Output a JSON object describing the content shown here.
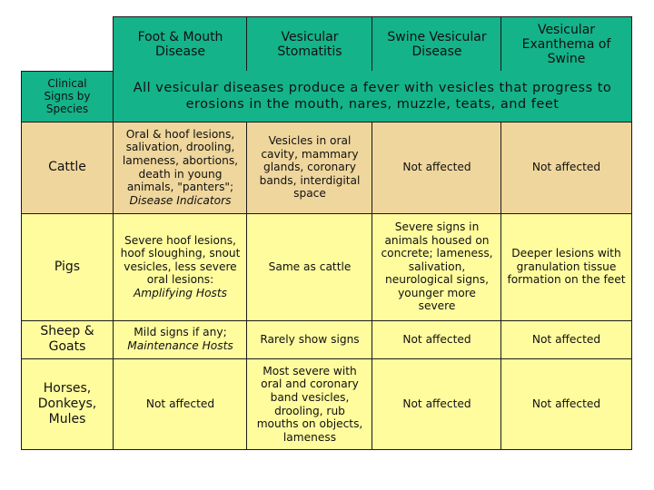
{
  "headers": {
    "fmd": "Foot & Mouth Disease",
    "vs": "Vesicular Stomatitis",
    "svd": "Swine Vesicular Disease",
    "ves": "Vesicular Exanthema of Swine"
  },
  "clinical_label": "Clinical Signs by Species",
  "all_diseases_text": "All vesicular diseases produce a fever with vesicles that progress to erosions in the mouth, nares, muzzle, teats, and feet",
  "rows": {
    "cattle": {
      "label": "Cattle",
      "fmd": "Oral & hoof lesions, salivation, drooling, lameness, abortions, death in young animals, \"panters\";",
      "fmd_role": "Disease Indicators",
      "vs": "Vesicles in oral cavity, mammary glands, coronary bands, interdigital space",
      "svd": "Not affected",
      "ves": "Not affected"
    },
    "pigs": {
      "label": "Pigs",
      "fmd": "Severe hoof lesions, hoof sloughing, snout vesicles, less severe oral lesions:",
      "fmd_role": "Amplifying Hosts",
      "vs": "Same as cattle",
      "svd": "Severe signs in animals housed on concrete; lameness, salivation, neurological signs, younger more severe",
      "ves": "Deeper lesions with granulation tissue formation on the feet"
    },
    "sheep": {
      "label": "Sheep & Goats",
      "fmd": "Mild signs if any;",
      "fmd_role": "Maintenance Hosts",
      "vs": "Rarely show signs",
      "svd": "Not affected",
      "ves": "Not affected"
    },
    "horses": {
      "label": "Horses, Donkeys, Mules",
      "fmd": "Not affected",
      "vs": "Most severe with oral and coronary band vesicles, drooling, rub mouths on objects, lameness",
      "svd": "Not affected",
      "ves": "Not affected"
    }
  },
  "colors": {
    "header": "#14b38a",
    "cattle_row": "#efd69c",
    "other_rows": "#fffc9e"
  }
}
